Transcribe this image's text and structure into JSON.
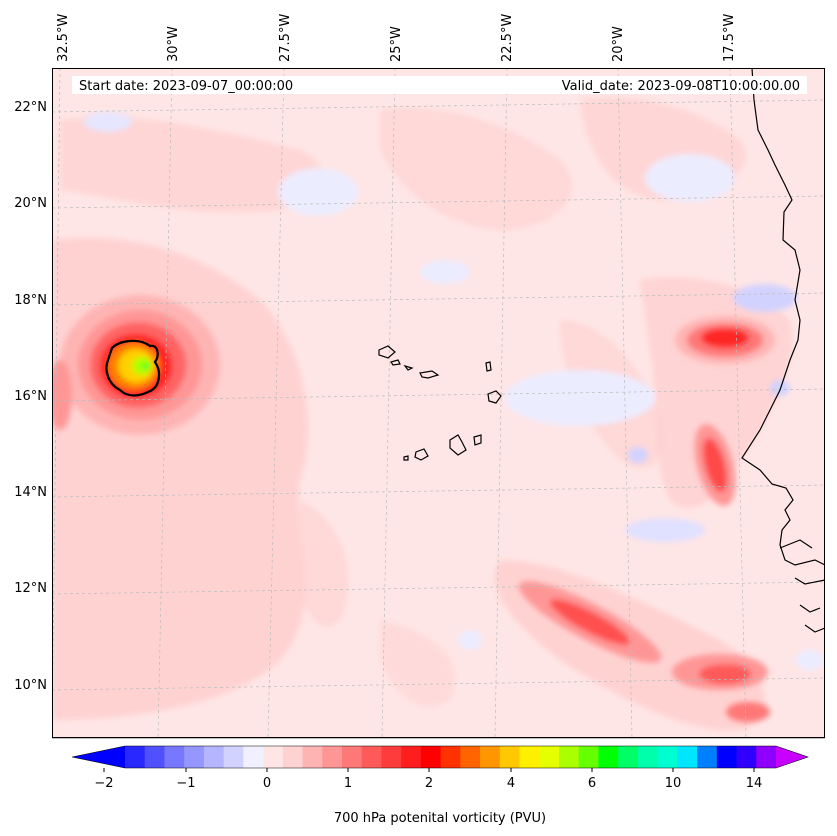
{
  "map": {
    "start_date_label": "Start date: 2023-09-07_00:00:00",
    "valid_date_label": "Valid_date: 2023-09-08T10:00:00.00",
    "lon_labels": [
      "32.5°W",
      "30°W",
      "27.5°W",
      "25°W",
      "22.5°W",
      "20°W",
      "17.5°W"
    ],
    "lat_labels": [
      "22°N",
      "20°N",
      "18°N",
      "16°N",
      "14°N",
      "12°N",
      "10°N"
    ],
    "background_color": "#ffe6e6"
  },
  "colorbar": {
    "label": "700 hPa potenital vorticity (PVU)",
    "ticks": [
      "−2",
      "−1",
      "0",
      "1",
      "2",
      "4",
      "6",
      "10",
      "14"
    ],
    "extend": "both",
    "colors": [
      "#0000ff",
      "#2828ff",
      "#5050ff",
      "#7878ff",
      "#9696ff",
      "#b4b4ff",
      "#d2d2ff",
      "#f0f0ff",
      "#ffe6e6",
      "#ffd2d2",
      "#ffb4b4",
      "#ff9696",
      "#ff7878",
      "#ff5a5a",
      "#ff3c3c",
      "#ff1e1e",
      "#ff0000",
      "#ff3200",
      "#ff6400",
      "#ff9600",
      "#ffc800",
      "#fff000",
      "#e6ff00",
      "#aaff00",
      "#66ff00",
      "#00ff00",
      "#00ff66",
      "#00ffaa",
      "#00ffd0",
      "#00e6ff",
      "#0080ff",
      "#0000ff",
      "#3000ff",
      "#9000ff",
      "#c800ff"
    ]
  }
}
